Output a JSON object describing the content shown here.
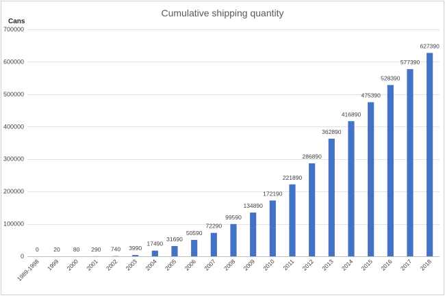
{
  "chart_data": {
    "type": "bar",
    "title": "Cumulative shipping quantity",
    "ylabel": "Cans",
    "xlabel": "",
    "categories": [
      "1989-1998",
      "1999",
      "2000",
      "2001",
      "2002",
      "2003",
      "2004",
      "2005",
      "2006",
      "2007",
      "2008",
      "2009",
      "2010",
      "2011",
      "2012",
      "2013",
      "2014",
      "2015",
      "2016",
      "2017",
      "2018"
    ],
    "values": [
      0,
      20,
      80,
      290,
      740,
      3990,
      17490,
      31690,
      50590,
      72290,
      99590,
      134890,
      172190,
      221890,
      286890,
      362890,
      416890,
      475390,
      528390,
      577390,
      627390
    ],
    "ylim": [
      0,
      700000
    ],
    "yticks": [
      0,
      100000,
      200000,
      300000,
      400000,
      500000,
      600000,
      700000
    ],
    "grid": true,
    "legend": "none",
    "bar_color": "#4472C4",
    "data_labels": true
  }
}
